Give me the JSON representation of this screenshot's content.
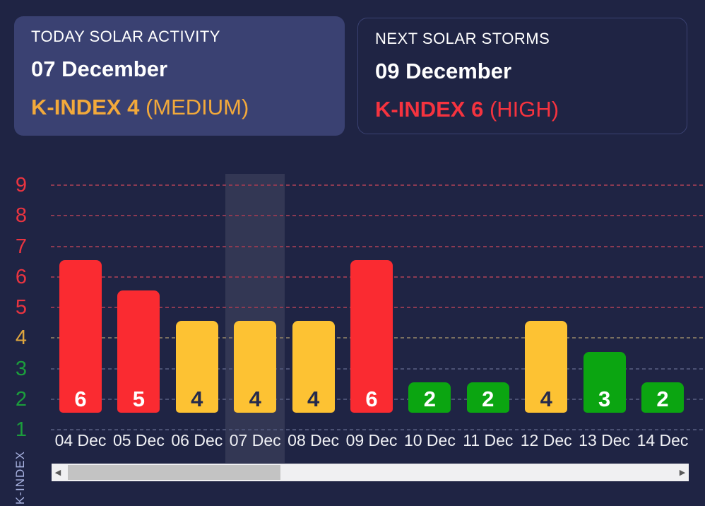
{
  "cards": {
    "today": {
      "label": "TODAY SOLAR ACTIVITY",
      "date": "07 December",
      "kindex_value": "K-INDEX 4",
      "kindex_level": "(MEDIUM)"
    },
    "next": {
      "label": "NEXT SOLAR STORMS",
      "date": "09 December",
      "kindex_value": "K-INDEX 6",
      "kindex_level": "(HIGH)"
    }
  },
  "chart_data": {
    "type": "bar",
    "ylabel": "K-INDEX",
    "categories": [
      "04 Dec",
      "05 Dec",
      "06 Dec",
      "07 Dec",
      "08 Dec",
      "09 Dec",
      "10 Dec",
      "11 Dec",
      "12 Dec",
      "13 Dec",
      "14 Dec"
    ],
    "values": [
      6,
      5,
      4,
      4,
      4,
      6,
      2,
      2,
      4,
      3,
      2
    ],
    "severity": [
      "red",
      "red",
      "yellow",
      "yellow",
      "yellow",
      "red",
      "green",
      "green",
      "yellow",
      "green",
      "green"
    ],
    "highlighted_category": "07 Dec",
    "yticks": [
      1,
      2,
      3,
      4,
      5,
      6,
      7,
      8,
      9
    ],
    "ytick_severity": [
      "green",
      "green",
      "green",
      "yellow",
      "red",
      "red",
      "red",
      "red",
      "red"
    ],
    "ylim": [
      1,
      9
    ],
    "grid": true,
    "legend": false
  },
  "colors": {
    "background": "#1f2444",
    "card_fill": "#3a4172",
    "card_border": "#3b4272",
    "accent_yellow": "#f2a93b",
    "accent_red": "#f5333f",
    "bar_red": "#fa2b31",
    "bar_yellow": "#fdc233",
    "bar_green": "#0ba511",
    "tick_red": "#ea3440",
    "tick_yellow": "#dfa63e",
    "tick_green": "#1b9e3c",
    "grid_red": "#8c3a52",
    "grid_yellow": "#7a7060",
    "grid_green": "#4b5173",
    "bar_label_dark": "#252a4c",
    "bar_label_light": "#ffffff"
  },
  "scrollbar": {
    "left_arrow": "◀",
    "right_arrow": "▶"
  }
}
